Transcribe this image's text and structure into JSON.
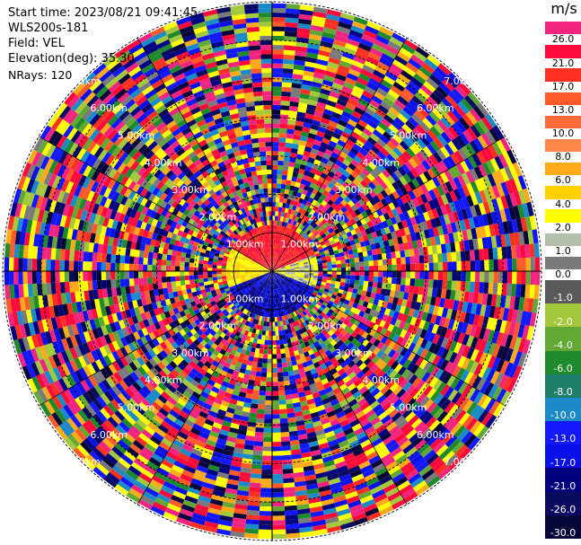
{
  "info": {
    "start_time": "Start time: 2023/08/21 09:41:45",
    "instrument": "WLS200s-181",
    "field": "Field: VEL",
    "elevation": "Elevation(deg): 35.30",
    "nrays": "NRays: 120"
  },
  "colorbar": {
    "unit": "m/s",
    "bins": [
      {
        "label": "26.0",
        "color": "#f2247f"
      },
      {
        "label": "21.0",
        "color": "#ff0a3a"
      },
      {
        "label": "17.0",
        "color": "#ff3020"
      },
      {
        "label": "13.0",
        "color": "#ff5a28"
      },
      {
        "label": "10.0",
        "color": "#ff6c36"
      },
      {
        "label": "8.0",
        "color": "#ff8848"
      },
      {
        "label": "6.0",
        "color": "#ffaa18"
      },
      {
        "label": "4.0",
        "color": "#ffd000"
      },
      {
        "label": "2.0",
        "color": "#ffff00"
      },
      {
        "label": "1.0",
        "color": "#b4bfae"
      },
      {
        "label": "0.0",
        "color": "#7a7a7a"
      },
      {
        "label": "-1.0",
        "color": "#5a5a5a"
      },
      {
        "label": "-2.0",
        "color": "#a4c83c"
      },
      {
        "label": "-4.0",
        "color": "#62a834"
      },
      {
        "label": "-6.0",
        "color": "#1f8a2c"
      },
      {
        "label": "-8.0",
        "color": "#1f7f6a"
      },
      {
        "label": "-10.0",
        "color": "#1a8ac8"
      },
      {
        "label": "-13.0",
        "color": "#1218ff"
      },
      {
        "label": "-17.0",
        "color": "#0a10e8"
      },
      {
        "label": "-21.0",
        "color": "#000080"
      },
      {
        "label": "-26.0",
        "color": "#0a0a60"
      },
      {
        "label": "-30.0",
        "color": "#06063a"
      }
    ]
  },
  "range_labels": [
    "1.00km",
    "2.00km",
    "3.00km",
    "4.00km",
    "5.00km",
    "6.00km",
    "7.00km"
  ],
  "chart_data": {
    "type": "heatmap",
    "projection": "polar PPI",
    "field": "VEL",
    "units": "m/s",
    "elevation_deg": 35.3,
    "n_rays": 120,
    "range_rings_km": [
      1,
      2,
      3,
      4,
      5,
      6,
      7
    ],
    "max_range_km": 7.0,
    "valid_range_km": 1.3,
    "near_field_pattern": {
      "north_sector_velocity_ms": 21,
      "east_sector_velocity_ms": 2,
      "south_sector_velocity_ms": -17,
      "west_sector_velocity_ms": 4
    },
    "far_field": "noise (random velocities across full scale)",
    "vmin": -30.0,
    "vmax": 26.0
  }
}
